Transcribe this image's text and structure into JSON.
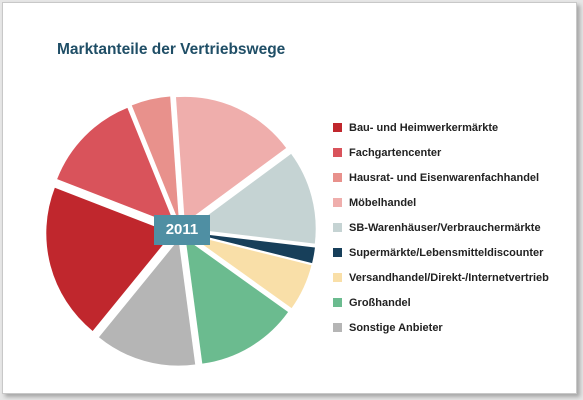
{
  "chart_data": {
    "type": "pie",
    "title": "Marktanteile der Vertriebswege",
    "center_label": "2011",
    "categories": [
      "Bau- und Heimwerkermärkte",
      "Fachgartencenter",
      "Hausrat- und Eisenwarenfachhandel",
      "Möbelhandel",
      "SB-Warenhäuser/Verbrauchermärkte",
      "Supermärkte/Lebensmitteldiscounter",
      "Versandhandel/Direkt-/Internetvertrieb",
      "Großhandel",
      "Sonstige Anbieter"
    ],
    "values": [
      20,
      13,
      5,
      16,
      12,
      2,
      6,
      13,
      13
    ],
    "unit": "%",
    "colors": [
      "#c0272d",
      "#d9535b",
      "#e8918c",
      "#efaeac",
      "#c5d3d3",
      "#173f5a",
      "#f9dfa8",
      "#6bbb8f",
      "#b5b5b5"
    ],
    "legend_position": "right"
  }
}
